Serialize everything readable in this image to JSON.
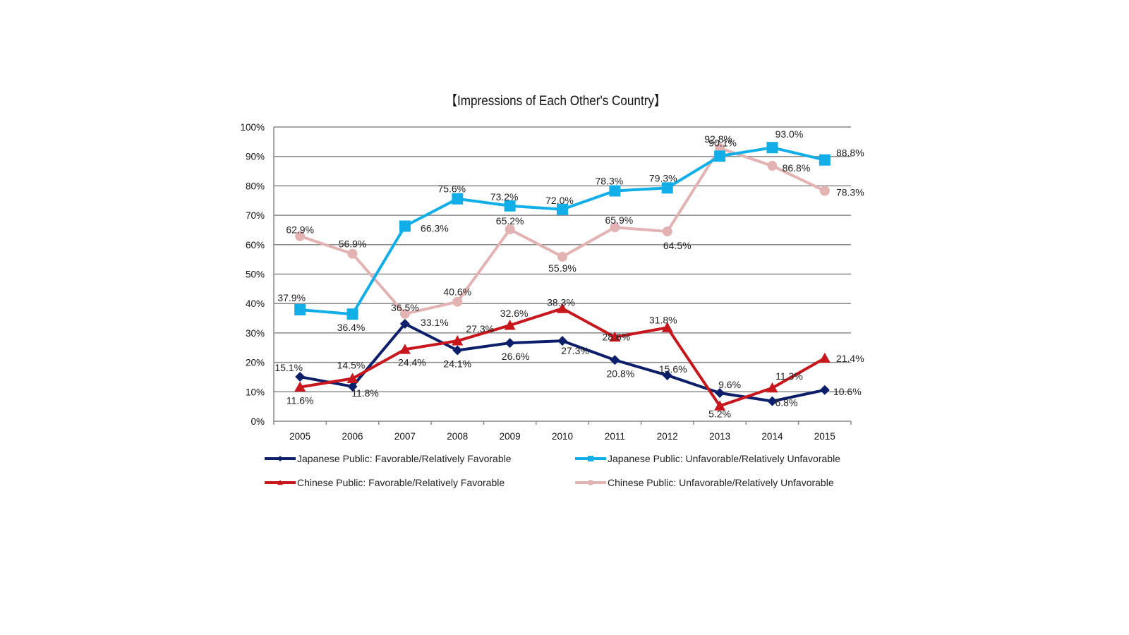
{
  "chart_data": {
    "type": "line",
    "title": "【Impressions of Each Other's Country】",
    "xlabel": "",
    "ylabel": "",
    "ylim": [
      0,
      100
    ],
    "y_ticks": [
      "0%",
      "10%",
      "20%",
      "30%",
      "40%",
      "50%",
      "60%",
      "70%",
      "80%",
      "90%",
      "100%"
    ],
    "grid": true,
    "legend_position": "bottom",
    "categories": [
      "2005",
      "2006",
      "2007",
      "2008",
      "2009",
      "2010",
      "2011",
      "2012",
      "2013",
      "2014",
      "2015"
    ],
    "series": [
      {
        "name": "Japanese Public: Favorable/Relatively Favorable",
        "color": "#0d1f6b",
        "marker": "diamond",
        "values": [
          15.1,
          11.8,
          33.1,
          24.1,
          26.6,
          27.3,
          20.8,
          15.6,
          9.6,
          6.8,
          10.6
        ]
      },
      {
        "name": "Japanese Public: Unfavorable/Relatively Unfavorable",
        "color": "#12aee8",
        "marker": "square",
        "values": [
          37.9,
          36.4,
          66.3,
          75.6,
          73.2,
          72.0,
          78.3,
          79.3,
          90.1,
          93.0,
          88.8
        ]
      },
      {
        "name": "Chinese Public: Favorable/Relatively Favorable",
        "color": "#c8161d",
        "marker": "triangle",
        "values": [
          11.6,
          14.5,
          24.4,
          27.3,
          32.6,
          38.3,
          28.6,
          31.8,
          5.2,
          11.3,
          21.4
        ]
      },
      {
        "name": "Chinese Public: Unfavorable/Relatively Unfavorable",
        "color": "#e3b3b3",
        "marker": "circle",
        "values": [
          62.9,
          56.9,
          36.5,
          40.6,
          65.2,
          55.9,
          65.9,
          64.5,
          92.8,
          86.8,
          78.3
        ]
      }
    ]
  }
}
